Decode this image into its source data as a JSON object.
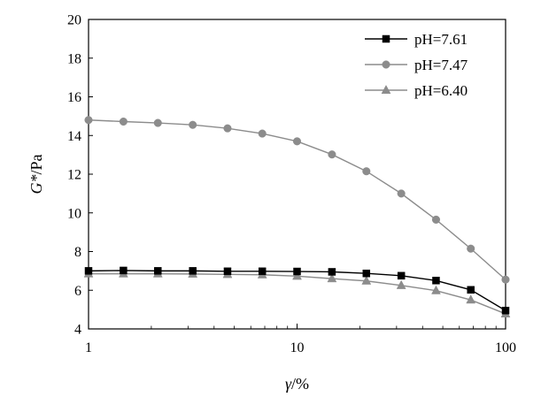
{
  "chart_data": {
    "type": "line",
    "title": "",
    "xlabel": {
      "var": "γ",
      "unit": "/%"
    },
    "ylabel": {
      "var": "G*",
      "unit": "/Pa"
    },
    "x_scale": "log",
    "xlim": [
      1,
      100
    ],
    "ylim": [
      4,
      20
    ],
    "x_ticks": [
      "1",
      "10",
      "100"
    ],
    "y_ticks": [
      "4",
      "6",
      "8",
      "10",
      "12",
      "14",
      "16",
      "18",
      "20"
    ],
    "grid": false,
    "legend_position": "top-right",
    "x": [
      1,
      1.47,
      2.15,
      3.16,
      4.64,
      6.81,
      10,
      14.7,
      21.5,
      31.6,
      46.4,
      68.1,
      100
    ],
    "series": [
      {
        "name": "pH=7.61",
        "marker": "square",
        "color": "#000000",
        "values": [
          7.0,
          7.02,
          7.0,
          7.0,
          6.98,
          6.98,
          6.97,
          6.95,
          6.87,
          6.75,
          6.5,
          6.02,
          4.95
        ]
      },
      {
        "name": "pH=7.47",
        "marker": "circle",
        "color": "#8c8c8c",
        "values": [
          14.8,
          14.72,
          14.65,
          14.55,
          14.37,
          14.1,
          13.7,
          13.02,
          12.15,
          11.0,
          9.65,
          8.15,
          6.55
        ]
      },
      {
        "name": "pH=6.40",
        "marker": "triangle",
        "color": "#8c8c8c",
        "values": [
          6.85,
          6.85,
          6.85,
          6.84,
          6.82,
          6.8,
          6.73,
          6.6,
          6.48,
          6.25,
          5.98,
          5.5,
          4.78
        ]
      }
    ]
  }
}
